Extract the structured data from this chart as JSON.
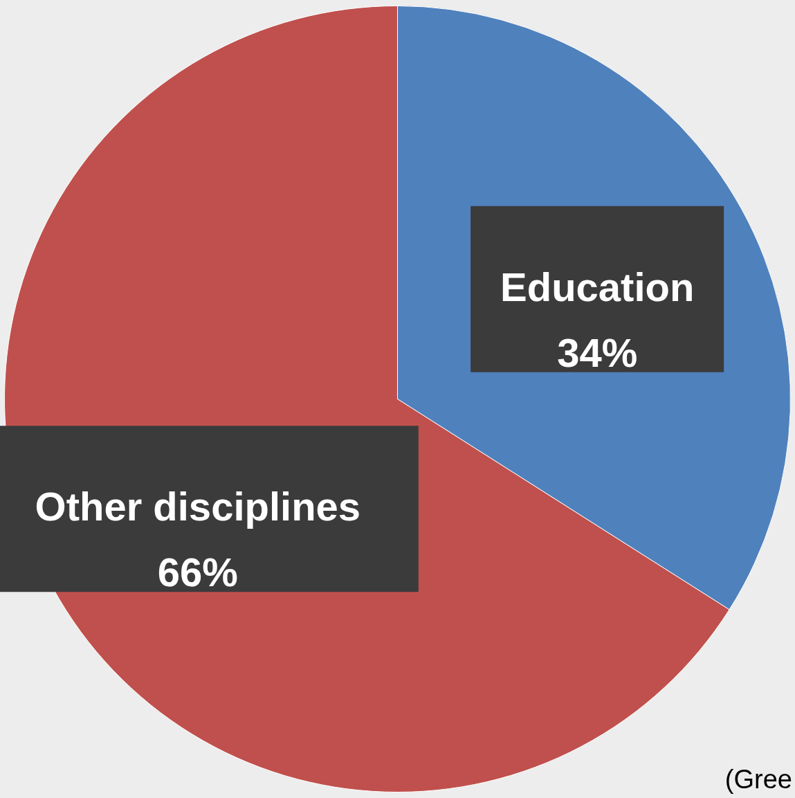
{
  "chart_data": {
    "type": "pie",
    "categories": [
      "Education",
      "Other disciplines"
    ],
    "values": [
      34,
      66
    ],
    "value_labels": [
      "34%",
      "66%"
    ],
    "colors": [
      "#4f81bd",
      "#c0504d"
    ],
    "annotations": [
      "(Gree"
    ]
  }
}
